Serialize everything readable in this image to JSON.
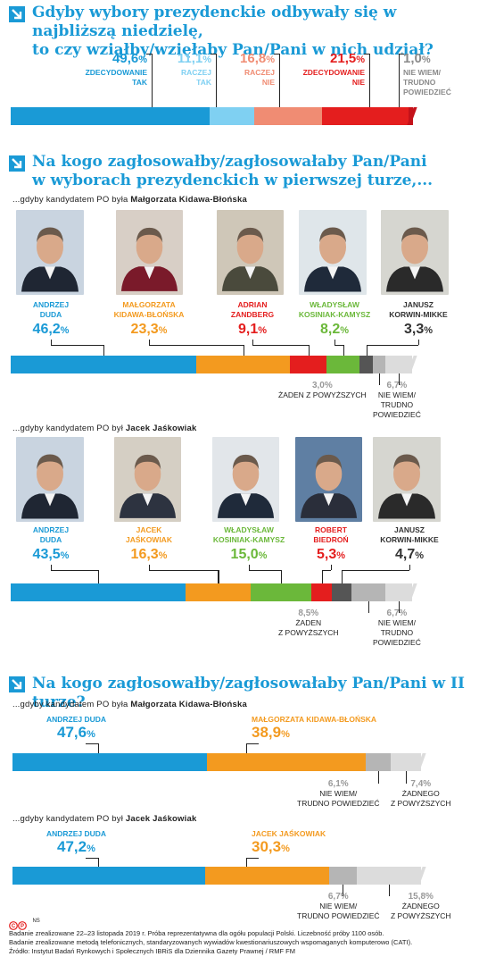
{
  "colors": {
    "blue": "#1a9ad6",
    "light_blue": "#7fd0f2",
    "salmon": "#f08c73",
    "red": "#e41e1e",
    "orange": "#f39a1f",
    "green": "#6bb83a",
    "dark_grey": "#555555",
    "grey": "#b5b5b5",
    "light_grey": "#dcdcdc",
    "dark_red": "#c4121a"
  },
  "q1": {
    "icon": "arrow-icon",
    "title_line1": "Gdyby wybory prezydenckie odbywały się w najbliższą niedzielę,",
    "title_line2": "to czy wziąłby/wzięłaby Pan/Pani w nich udział?",
    "items": [
      {
        "pct": "49,6",
        "unit": "%",
        "l1": "zdecydowanie",
        "l2": "tak",
        "l3": ""
      },
      {
        "pct": "11,1",
        "unit": "%",
        "l1": "raczej",
        "l2": "tak",
        "l3": ""
      },
      {
        "pct": "16,8",
        "unit": "%",
        "l1": "raczej",
        "l2": "nie",
        "l3": ""
      },
      {
        "pct": "21,5",
        "unit": "%",
        "l1": "zdecydowanie",
        "l2": "nie",
        "l3": ""
      },
      {
        "pct": "1,0",
        "unit": "%",
        "l1": "nie wiem/",
        "l2": "trudno",
        "l3": "powiedzieć"
      }
    ]
  },
  "q2": {
    "icon": "arrow-icon",
    "title_line1": "Na kogo zagłosowałby/zagłosowałaby Pan/Pani",
    "title_line2": "w wyborach prezydenckich w pierwszej turze,...",
    "a": {
      "sub_pre": "...gdyby kandydatem PO była ",
      "sub_name": "Małgorzata Kidawa-Błońska",
      "candidates": [
        {
          "n1": "Andrzej",
          "n2": "Duda",
          "pct": "46,2"
        },
        {
          "n1": "Małgorzata",
          "n2": "Kidawa-Błońska",
          "pct": "23,3"
        },
        {
          "n1": "Adrian",
          "n2": "Zandberg",
          "pct": "9,1"
        },
        {
          "n1": "Władysław",
          "n2": "Kosiniak-Kamysz",
          "pct": "8,2"
        },
        {
          "n1": "Janusz",
          "n2": "Korwin-Mikke",
          "pct": "3,3"
        }
      ],
      "unit": "%",
      "other1": {
        "pct": "3,0%",
        "l1": "żaden z powyższych"
      },
      "other2": {
        "pct": "6,7%",
        "l1": "nie wiem/",
        "l2": "trudno",
        "l3": "powiedzieć"
      }
    },
    "b": {
      "sub_pre": "...gdyby kandydatem PO był ",
      "sub_name": "Jacek Jaśkowiak",
      "candidates": [
        {
          "n1": "Andrzej",
          "n2": "Duda",
          "pct": "43,5"
        },
        {
          "n1": "Jacek",
          "n2": "Jaśkowiak",
          "pct": "16,3"
        },
        {
          "n1": "Władysław",
          "n2": "Kosiniak-Kamysz",
          "pct": "15,0"
        },
        {
          "n1": "Robert",
          "n2": "Biedroń",
          "pct": "5,3"
        },
        {
          "n1": "Janusz",
          "n2": "Korwin-Mikke",
          "pct": "4,7"
        }
      ],
      "unit": "%",
      "other1": {
        "pct": "8,5%",
        "l1": "żaden",
        "l2": "z powyższych"
      },
      "other2": {
        "pct": "6,7%",
        "l1": "nie wiem/",
        "l2": "trudno",
        "l3": "powiedzieć"
      }
    }
  },
  "q3": {
    "icon": "arrow-icon",
    "title": "Na kogo zagłosowałby/zagłosowałaby Pan/Pani w II turze?",
    "a": {
      "sub_pre": "...gdyby kandydatem PO była ",
      "sub_name": "Małgorzata Kidawa-Błońska",
      "c1": {
        "name": "Andrzej Duda",
        "pct": "47,6"
      },
      "c2": {
        "name": "Małgorzata Kidawa-Błońska",
        "pct": "38,9"
      },
      "unit": "%",
      "o1": {
        "pct": "6,1%",
        "l1": "nie wiem/",
        "l2": "trudno powiedzieć"
      },
      "o2": {
        "pct": "7,4%",
        "l1": "żadnego",
        "l2": "z powyższych"
      }
    },
    "b": {
      "sub_pre": "...gdyby kandydatem PO był ",
      "sub_name": "Jacek Jaśkowiak",
      "c1": {
        "name": "Andrzej Duda",
        "pct": "47,2"
      },
      "c2": {
        "name": "Jacek Jaśkowiak",
        "pct": "30,3"
      },
      "unit": "%",
      "o1": {
        "pct": "6,7%",
        "l1": "nie wiem/",
        "l2": "trudno powiedzieć"
      },
      "o2": {
        "pct": "15,8%",
        "l1": "żadnego",
        "l2": "z powyższych"
      }
    }
  },
  "footer": {
    "logo_text": "NS",
    "line1": "Badanie zrealizowane 22–23 listopada 2019 r. Próba reprezentatywna dla ogółu populacji Polski. Liczebność próby 1100 osób.",
    "line2": "Badanie zrealizowane metodą telefonicznych, standaryzowanych wywiadów kwestionariuszowych wspomaganych komputerowo (CATI).",
    "line3": "Źródło: Instytut Badań Rynkowych i Społecznych IBRiS dla Dziennika Gazety Prawnej / RMF FM"
  },
  "chart_data": [
    {
      "type": "bar",
      "title": "Gdyby wybory prezydenckie odbywały się w najbliższą niedzielę, to czy wziąłby/wzięłaby Pan/Pani w nich udział?",
      "categories": [
        "zdecydowanie tak",
        "raczej tak",
        "raczej nie",
        "zdecydowanie nie",
        "nie wiem/trudno powiedzieć"
      ],
      "values": [
        49.6,
        11.1,
        16.8,
        21.5,
        1.0
      ]
    },
    {
      "type": "bar",
      "title": "...gdyby kandydatem PO była Małgorzata Kidawa-Błońska",
      "categories": [
        "Andrzej Duda",
        "Małgorzata Kidawa-Błońska",
        "Adrian Zandberg",
        "Władysław Kosiniak-Kamysz",
        "Janusz Korwin-Mikke",
        "żaden z powyższych",
        "nie wiem/trudno powiedzieć"
      ],
      "values": [
        46.2,
        23.3,
        9.1,
        8.2,
        3.3,
        3.0,
        6.7
      ]
    },
    {
      "type": "bar",
      "title": "...gdyby kandydatem PO był Jacek Jaśkowiak",
      "categories": [
        "Andrzej Duda",
        "Jacek Jaśkowiak",
        "Władysław Kosiniak-Kamysz",
        "Robert Biedroń",
        "Janusz Korwin-Mikke",
        "żaden z powyższych",
        "nie wiem/trudno powiedzieć"
      ],
      "values": [
        43.5,
        16.3,
        15.0,
        5.3,
        4.7,
        8.5,
        6.7
      ]
    },
    {
      "type": "bar",
      "title": "...gdyby kandydatem PO była Małgorzata Kidawa-Błońska",
      "categories": [
        "Andrzej Duda",
        "Małgorzata Kidawa-Błońska",
        "nie wiem/trudno powiedzieć",
        "żadnego z powyższych"
      ],
      "values": [
        47.6,
        38.9,
        6.1,
        7.4
      ]
    },
    {
      "type": "bar",
      "title": "...gdyby kandydatem PO był Jacek Jaśkowiak",
      "categories": [
        "Andrzej Duda",
        "Jacek Jaśkowiak",
        "nie wiem/trudno powiedzieć",
        "żadnego z powyższych"
      ],
      "values": [
        47.2,
        30.3,
        6.7,
        15.8
      ]
    }
  ]
}
